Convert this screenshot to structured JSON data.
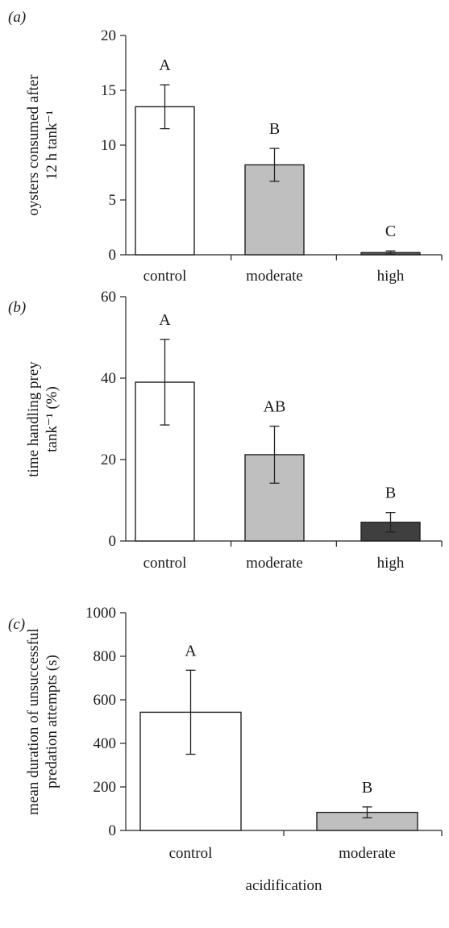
{
  "chart_data": [
    {
      "type": "bar",
      "panel_label": "(a)",
      "ylabel_lines": [
        "oysters consumed after",
        "12 h tank⁻¹"
      ],
      "xlabel": "",
      "categories": [
        "control",
        "moderate",
        "high"
      ],
      "values": [
        13.5,
        8.2,
        0.2
      ],
      "errors": [
        2.0,
        1.5,
        0.15
      ],
      "significance": [
        "A",
        "B",
        "C"
      ],
      "bar_colors": [
        "#ffffff",
        "#bfbfbf",
        "#595959"
      ],
      "ylim": [
        0,
        20
      ],
      "yticks": [
        0,
        5,
        10,
        15,
        20
      ],
      "grid": false
    },
    {
      "type": "bar",
      "panel_label": "(b)",
      "ylabel_lines": [
        "time handling prey",
        "tank⁻¹ (%)"
      ],
      "xlabel": "",
      "categories": [
        "control",
        "moderate",
        "high"
      ],
      "values": [
        39,
        21.2,
        4.6
      ],
      "errors": [
        10.5,
        7.0,
        2.4
      ],
      "significance": [
        "A",
        "AB",
        "B"
      ],
      "bar_colors": [
        "#ffffff",
        "#bfbfbf",
        "#3f3f3f"
      ],
      "ylim": [
        0,
        60
      ],
      "yticks": [
        0,
        20,
        40,
        60
      ],
      "grid": false
    },
    {
      "type": "bar",
      "panel_label": "(c)",
      "ylabel_lines": [
        "mean duration of unsuccessful",
        "predation attempts (s)"
      ],
      "xlabel": "acidification",
      "categories": [
        "control",
        "moderate"
      ],
      "values": [
        543,
        83
      ],
      "errors": [
        193,
        25
      ],
      "significance": [
        "A",
        "B"
      ],
      "bar_colors": [
        "#ffffff",
        "#bfbfbf"
      ],
      "ylim": [
        0,
        1000
      ],
      "yticks": [
        0,
        200,
        400,
        600,
        800,
        1000
      ],
      "grid": false
    }
  ]
}
